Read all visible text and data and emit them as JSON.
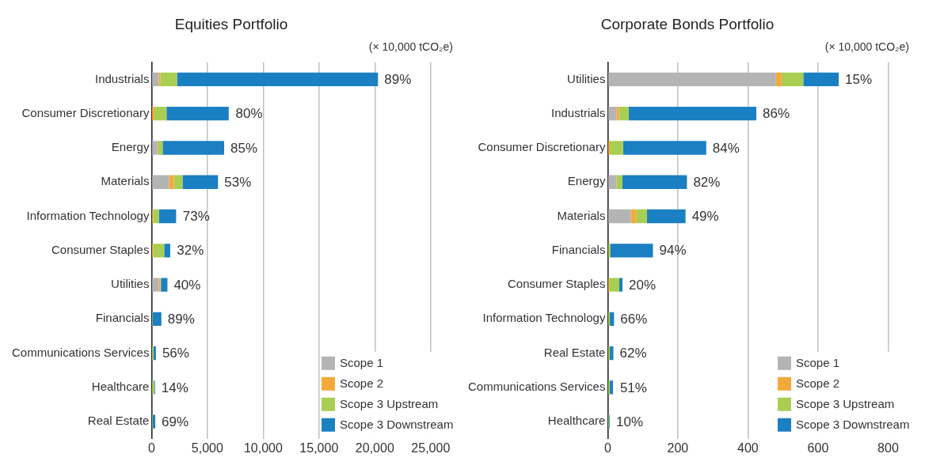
{
  "chart_data": [
    {
      "type": "bar",
      "title": "Equities Portfolio",
      "orientation": "horizontal",
      "stacked": true,
      "grid": "x",
      "legend": "bottom right",
      "annotations": [
        "(× 10,000 tCO₂e)",
        {
          "text": "89%",
          "x": 20280,
          "y": "Industrials"
        },
        {
          "text": "80%",
          "x": 6960,
          "y": "Consumer Discretionary"
        },
        {
          "text": "85%",
          "x": 6500,
          "y": "Energy"
        },
        {
          "text": "53%",
          "x": 5950,
          "y": "Materials"
        },
        {
          "text": "73%",
          "x": 2230,
          "y": "Information Technology"
        },
        {
          "text": "32%",
          "x": 1690,
          "y": "Consumer Staples"
        },
        {
          "text": "40%",
          "x": 1420,
          "y": "Utilities"
        },
        {
          "text": "89%",
          "x": 880,
          "y": "Financials"
        },
        {
          "text": "56%",
          "x": 390,
          "y": "Communications Services"
        },
        {
          "text": "14%",
          "x": 310,
          "y": "Healthcare"
        },
        {
          "text": "69%",
          "x": 330,
          "y": "Real Estate"
        }
      ],
      "categories": [
        "Industrials",
        "Consumer Discretionary",
        "Energy",
        "Materials",
        "Information Technology",
        "Consumer Staples",
        "Utilities",
        "Financials",
        "Communications Services",
        "Healthcare",
        "Real Estate"
      ],
      "series": [
        {
          "name": "Scope 1",
          "color": "#b4b4b4",
          "values": [
            650,
            0,
            520,
            1580,
            0,
            0,
            650,
            0,
            0,
            0,
            0
          ]
        },
        {
          "name": "Scope 2",
          "color": "#f5a93a",
          "values": [
            150,
            250,
            80,
            410,
            130,
            150,
            130,
            0,
            0,
            0,
            0
          ]
        },
        {
          "name": "Scope 3 Upstream",
          "color": "#a8cf52",
          "values": [
            1480,
            1090,
            390,
            780,
            520,
            980,
            60,
            100,
            170,
            230,
            100
          ]
        },
        {
          "name": "Scope 3 Downstream",
          "color": "#1b7fc3",
          "values": [
            18000,
            5570,
            5510,
            3180,
            1550,
            540,
            580,
            780,
            220,
            80,
            230
          ]
        }
      ],
      "xlim": [
        0,
        27000
      ],
      "xticks": [
        0,
        {
          "value": 5000,
          "label": "5,000"
        },
        {
          "value": 10000,
          "label": "10,000"
        },
        {
          "value": 15000,
          "label": "15,000"
        },
        {
          "value": 20000,
          "label": "20,000"
        },
        {
          "value": 25000,
          "label": "25,000"
        }
      ]
    },
    {
      "type": "bar",
      "title": "Corporate Bonds Portfolio",
      "orientation": "horizontal",
      "stacked": true,
      "grid": "x",
      "legend": "bottom right",
      "annotations": [
        "(× 10,000 tCO₂e)",
        {
          "text": "15%",
          "x": 659,
          "y": "Utilities"
        },
        {
          "text": "86%",
          "x": 424,
          "y": "Industrials"
        },
        {
          "text": "84%",
          "x": 281,
          "y": "Consumer Discretionary"
        },
        {
          "text": "82%",
          "x": 226,
          "y": "Energy"
        },
        {
          "text": "49%",
          "x": 222,
          "y": "Materials"
        },
        {
          "text": "94%",
          "x": 129,
          "y": "Financials"
        },
        {
          "text": "20%",
          "x": 42,
          "y": "Consumer Staples"
        },
        {
          "text": "66%",
          "x": 18,
          "y": "Information Technology"
        },
        {
          "text": "62%",
          "x": 16,
          "y": "Real Estate"
        },
        {
          "text": "51%",
          "x": 17,
          "y": "Communications Services"
        },
        {
          "text": "10%",
          "x": 6,
          "y": "Healthcare"
        }
      ],
      "categories": [
        "Utilities",
        "Industrials",
        "Consumer Discretionary",
        "Energy",
        "Materials",
        "Financials",
        "Consumer Staples",
        "Information Technology",
        "Real Estate",
        "Communications Services",
        "Healthcare"
      ],
      "series": [
        {
          "name": "Scope 1",
          "color": "#b4b4b4",
          "values": [
            480,
            25,
            0,
            25,
            66,
            0,
            0,
            0,
            0,
            0,
            0
          ]
        },
        {
          "name": "Scope 2",
          "color": "#f5a93a",
          "values": [
            16,
            7,
            6,
            0,
            15,
            0,
            4,
            0,
            0,
            0,
            0
          ]
        },
        {
          "name": "Scope 3 Upstream",
          "color": "#a8cf52",
          "values": [
            62,
            28,
            38,
            17,
            31,
            7,
            29,
            6,
            6,
            6,
            4
          ]
        },
        {
          "name": "Scope 3 Downstream",
          "color": "#1b7fc3",
          "values": [
            101,
            364,
            237,
            184,
            110,
            122,
            9,
            12,
            10,
            9,
            2
          ]
        }
      ],
      "xlim": [
        0,
        860
      ],
      "xticks": [
        0,
        200,
        400,
        600,
        800
      ]
    }
  ]
}
